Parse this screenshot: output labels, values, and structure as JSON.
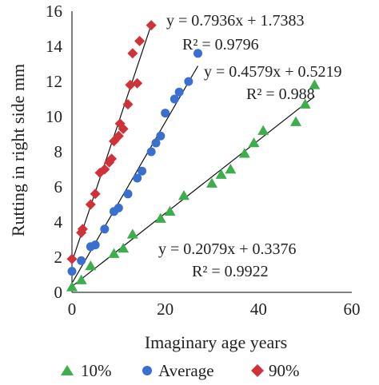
{
  "chart_data": {
    "type": "scatter",
    "title": "",
    "xlabel": "Imaginary age years",
    "ylabel": "Rutting in right side mm",
    "xlim": [
      0,
      60
    ],
    "ylim": [
      0,
      16
    ],
    "xticks": [
      0,
      20,
      40,
      60
    ],
    "yticks": [
      0,
      2,
      4,
      6,
      8,
      10,
      12,
      14,
      16
    ],
    "grid": false,
    "legend_placement": "bottom",
    "series": [
      {
        "name": "10%",
        "marker": "triangle",
        "color": "#3cae4b",
        "points": [
          [
            0,
            0.3
          ],
          [
            2,
            0.7
          ],
          [
            4,
            1.5
          ],
          [
            9,
            2.2
          ],
          [
            11,
            2.5
          ],
          [
            13,
            3.3
          ],
          [
            19,
            4.2
          ],
          [
            21,
            4.6
          ],
          [
            24,
            5.5
          ],
          [
            30,
            6.2
          ],
          [
            32,
            6.7
          ],
          [
            34,
            7.0
          ],
          [
            37,
            7.9
          ],
          [
            39,
            8.5
          ],
          [
            41,
            9.2
          ],
          [
            48,
            9.7
          ],
          [
            50,
            10.7
          ],
          [
            52,
            11.8
          ]
        ],
        "trendline": {
          "slope": 0.2079,
          "intercept": 0.3376,
          "x_range": [
            0,
            52
          ],
          "equation": "y = 0.2079x + 0.3376",
          "r2": "R² = 0.9922"
        }
      },
      {
        "name": "Average",
        "marker": "circle",
        "color": "#3a6fd0",
        "points": [
          [
            0,
            1.2
          ],
          [
            2,
            1.8
          ],
          [
            4,
            2.6
          ],
          [
            5,
            2.7
          ],
          [
            7,
            3.6
          ],
          [
            9,
            4.6
          ],
          [
            10,
            4.8
          ],
          [
            12,
            5.6
          ],
          [
            14,
            6.5
          ],
          [
            15,
            6.9
          ],
          [
            17,
            8.0
          ],
          [
            18,
            8.5
          ],
          [
            19,
            8.9
          ],
          [
            20,
            10.2
          ],
          [
            22,
            11.0
          ],
          [
            23,
            11.4
          ],
          [
            25,
            12.0
          ],
          [
            27,
            13.6
          ]
        ],
        "trendline": {
          "slope": 0.4579,
          "intercept": 0.5219,
          "x_range": [
            0,
            27
          ],
          "equation": "y = 0.4579x + 0.5219",
          "r2": "R² = 0.988"
        }
      },
      {
        "name": "90%",
        "marker": "diamond",
        "color": "#d0323a",
        "points": [
          [
            0,
            1.9
          ],
          [
            2,
            3.4
          ],
          [
            2.3,
            3.6
          ],
          [
            4,
            5.0
          ],
          [
            5,
            5.6
          ],
          [
            6,
            6.8
          ],
          [
            7,
            7.0
          ],
          [
            8,
            7.4
          ],
          [
            8.5,
            7.6
          ],
          [
            9,
            8.6
          ],
          [
            10,
            8.9
          ],
          [
            10.3,
            9.6
          ],
          [
            11,
            9.3
          ],
          [
            12,
            10.7
          ],
          [
            12.5,
            11.8
          ],
          [
            14,
            11.9
          ],
          [
            14.5,
            14.3
          ],
          [
            13,
            13.6
          ],
          [
            17,
            15.2
          ]
        ],
        "trendline": {
          "slope": 0.7936,
          "intercept": 1.7383,
          "x_range": [
            0,
            17
          ],
          "equation": "y = 0.7936x + 1.7383",
          "r2": "R² = 0.9796"
        }
      }
    ],
    "legend": [
      "10%",
      "Average",
      "90%"
    ]
  }
}
